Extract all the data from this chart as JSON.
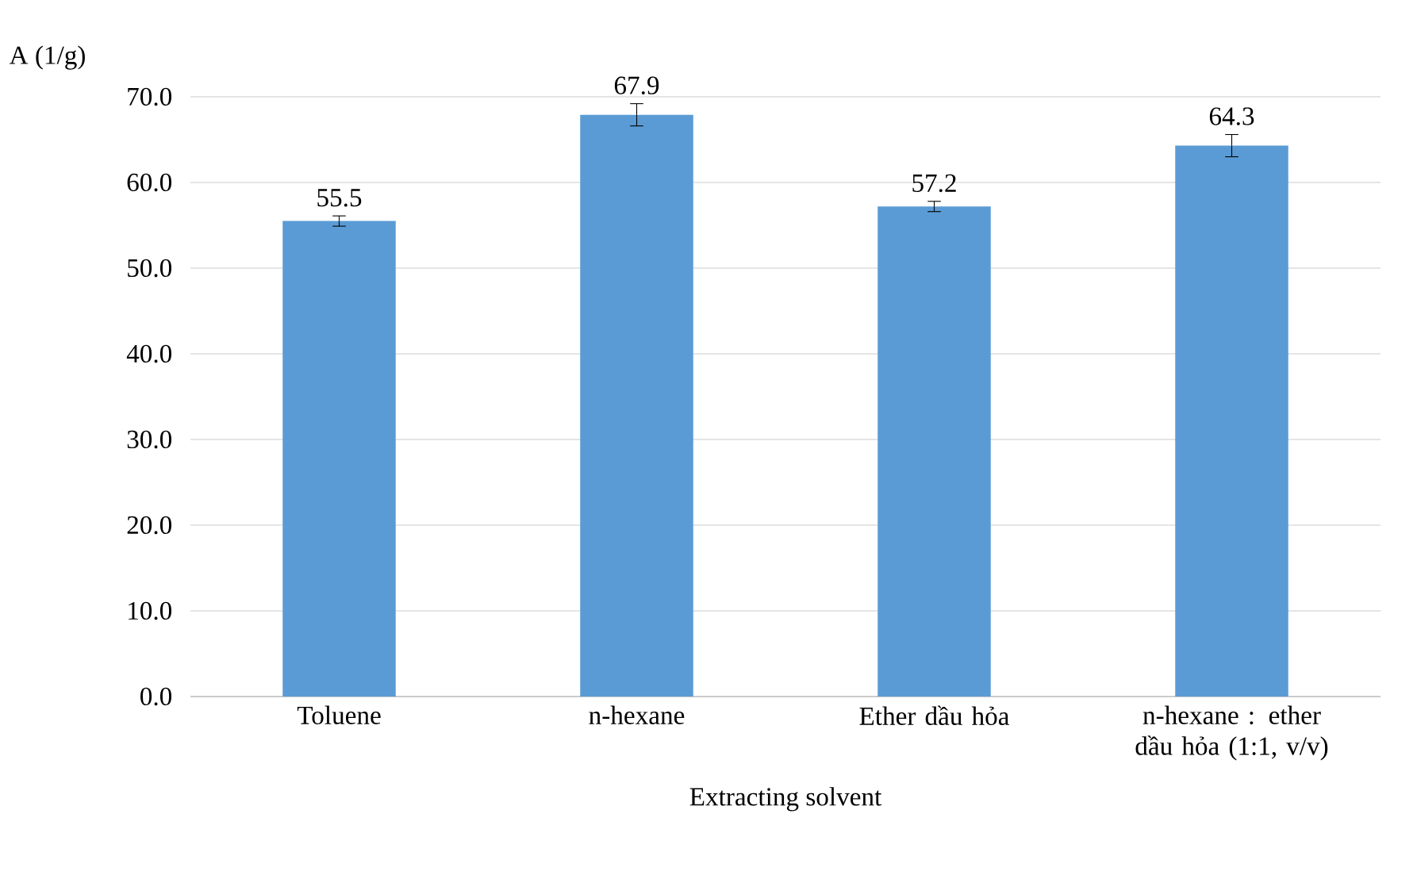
{
  "chart_data": {
    "type": "bar",
    "ylabel": "A (1/g)",
    "xlabel": "Extracting solvent",
    "categories": [
      "Toluene",
      "n-hexane",
      "Ether dầu hỏa",
      "n-hexane : ether dầu hỏa (1:1, v/v)"
    ],
    "values": [
      55.5,
      67.9,
      57.2,
      64.3
    ],
    "errors": [
      0.6,
      1.3,
      0.6,
      1.3
    ],
    "color": "#5b9bd5",
    "ylim": [
      0,
      70
    ],
    "yticks": [
      {
        "value": 0,
        "label": "0.0"
      },
      {
        "value": 10,
        "label": "10.0"
      },
      {
        "value": 20,
        "label": "20.0"
      },
      {
        "value": 30,
        "label": "30.0"
      },
      {
        "value": 40,
        "label": "40.0"
      },
      {
        "value": 50,
        "label": "50.0"
      },
      {
        "value": 60,
        "label": "60.0"
      },
      {
        "value": 70,
        "label": "70.0"
      }
    ],
    "grid": "y",
    "data_labels": true
  }
}
